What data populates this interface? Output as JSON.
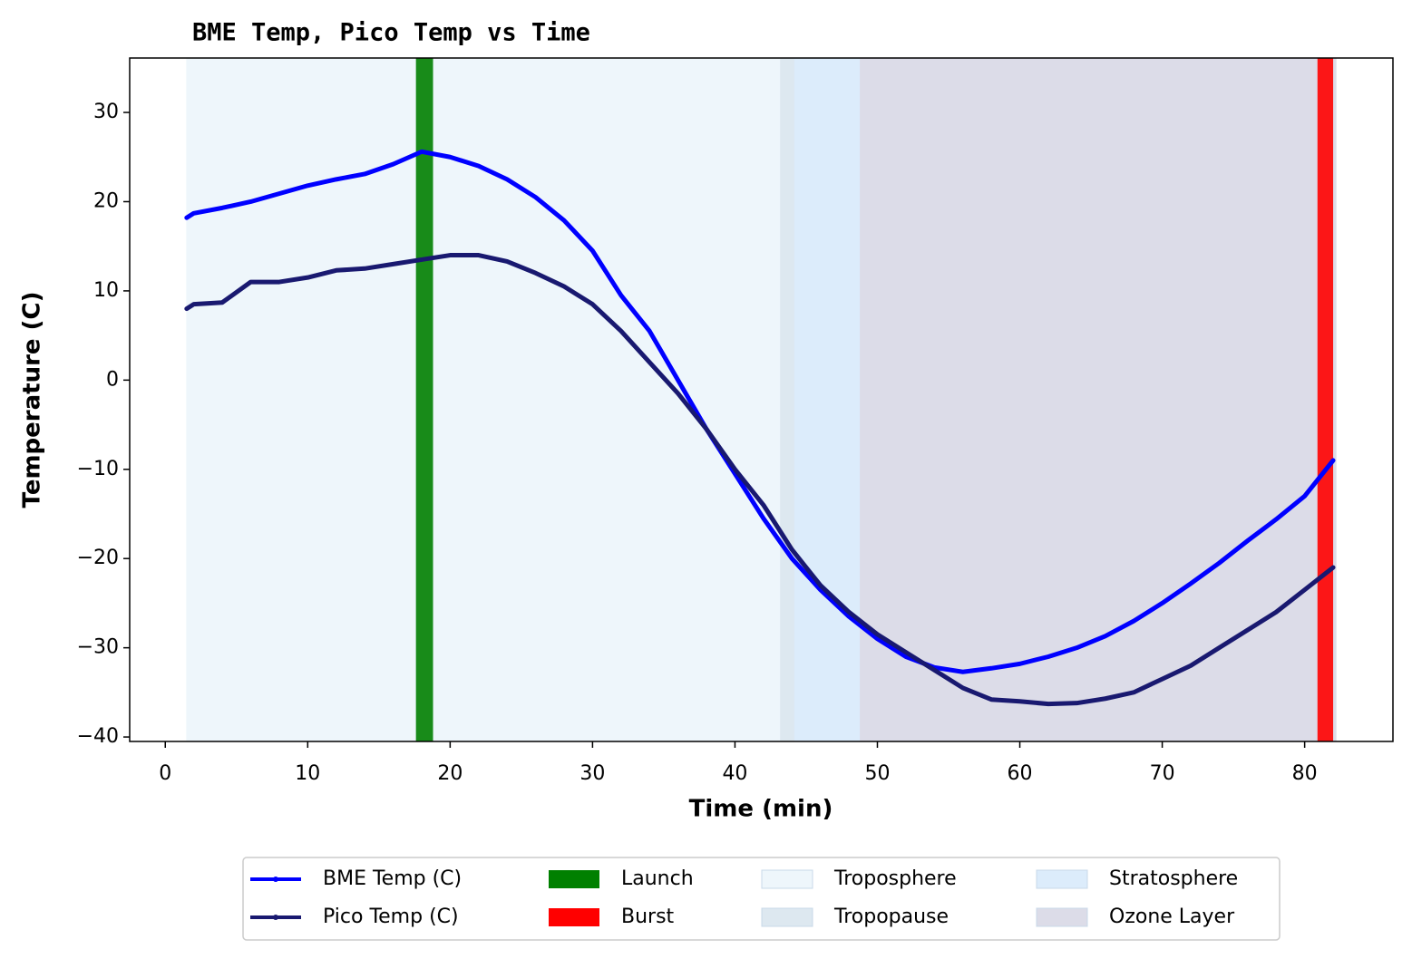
{
  "chart_data": {
    "type": "line",
    "title": "BME Temp, Pico Temp vs Time",
    "xlabel": "Time (min)",
    "ylabel": "Temperature (C)",
    "x": [
      1.5,
      2,
      4,
      6,
      8,
      10,
      12,
      14,
      16,
      18,
      20,
      22,
      24,
      26,
      28,
      30,
      32,
      34,
      36,
      38,
      40,
      42,
      44,
      46,
      48,
      50,
      52,
      54,
      56,
      58,
      60,
      62,
      64,
      66,
      68,
      70,
      72,
      74,
      76,
      78,
      80,
      82
    ],
    "series": [
      {
        "name": "BME Temp (C)",
        "color": "#0000ff",
        "values": [
          18.2,
          18.7,
          19.3,
          20.0,
          20.9,
          21.8,
          22.5,
          23.1,
          24.2,
          25.6,
          25.0,
          24.0,
          22.5,
          20.5,
          17.9,
          14.5,
          9.5,
          5.5,
          0,
          -5.5,
          -10.5,
          -15.5,
          -20,
          -23.5,
          -26.5,
          -29,
          -31,
          -32.2,
          -32.7,
          -32.3,
          -31.8,
          -31,
          -30,
          -28.7,
          -27,
          -25,
          -22.8,
          -20.5,
          -18,
          -15.6,
          -13,
          -9
        ]
      },
      {
        "name": "Pico Temp (C)",
        "color": "#191970",
        "values": [
          8,
          8.5,
          8.7,
          11,
          11,
          11.5,
          12.3,
          12.5,
          13,
          13.5,
          14,
          14,
          13.3,
          12,
          10.5,
          8.5,
          5.5,
          2,
          -1.5,
          -5.5,
          -10,
          -14,
          -19,
          -23,
          -26,
          -28.5,
          -30.5,
          -32.5,
          -34.5,
          -35.8,
          -36,
          -36.3,
          -36.2,
          -35.7,
          -35,
          -33.5,
          -32,
          -30,
          -28,
          -26,
          -23.5,
          -21
        ]
      }
    ],
    "spans": [
      {
        "name": "Launch",
        "color": "#008000",
        "xrange": [
          17.6,
          18.8
        ]
      },
      {
        "name": "Burst",
        "color": "#ff0000",
        "xrange": [
          80.9,
          82.0
        ]
      },
      {
        "name": "Troposphere",
        "color": "#eef6fb",
        "xrange": [
          1.5,
          43.2
        ]
      },
      {
        "name": "Tropopause",
        "color": "#dde8f0",
        "xrange": [
          43.2,
          44.2
        ]
      },
      {
        "name": "Stratosphere",
        "color": "#dcecfb",
        "xrange": [
          44.2,
          48.8
        ]
      },
      {
        "name": "Ozone Layer",
        "color": "#dcdce8",
        "xrange": [
          48.8,
          82.2
        ]
      }
    ],
    "xlim": [
      -2.5,
      86.2
    ],
    "ylim": [
      -40.5,
      36.1
    ],
    "xticks": [
      0,
      10,
      20,
      30,
      40,
      50,
      60,
      70,
      80
    ],
    "yticks": [
      {
        "value": -40,
        "label": "−40"
      },
      {
        "value": -30,
        "label": "−30"
      },
      {
        "value": -20,
        "label": "−20"
      },
      {
        "value": -10,
        "label": "−10"
      },
      0,
      10,
      20,
      30
    ]
  }
}
